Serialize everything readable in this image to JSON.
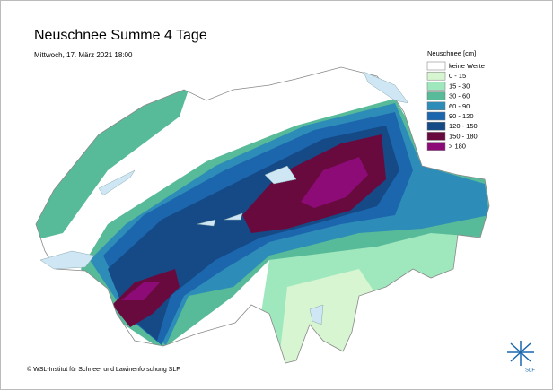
{
  "header": {
    "title": "Neuschnee Summe 4 Tage",
    "subtitle": "Mittwoch, 17. März 2021 18:00"
  },
  "legend": {
    "title": "Neuschnee [cm]",
    "items": [
      {
        "label": "keine Werte",
        "color": "#ffffff"
      },
      {
        "label": "0 - 15",
        "color": "#d6f5d0"
      },
      {
        "label": "15 - 30",
        "color": "#9fe8be"
      },
      {
        "label": "30 - 60",
        "color": "#57bb9a"
      },
      {
        "label": "60 - 90",
        "color": "#2e8db8"
      },
      {
        "label": "90 - 120",
        "color": "#1b66ad"
      },
      {
        "label": "120 - 150",
        "color": "#164a86"
      },
      {
        "label": "150 - 180",
        "color": "#680a3d"
      },
      {
        "label": "> 180",
        "color": "#8c0b77"
      }
    ]
  },
  "footer": {
    "copyright": "© WSL-Institut für Schnee- und Lawinenforschung SLF",
    "logo": "SLF"
  }
}
